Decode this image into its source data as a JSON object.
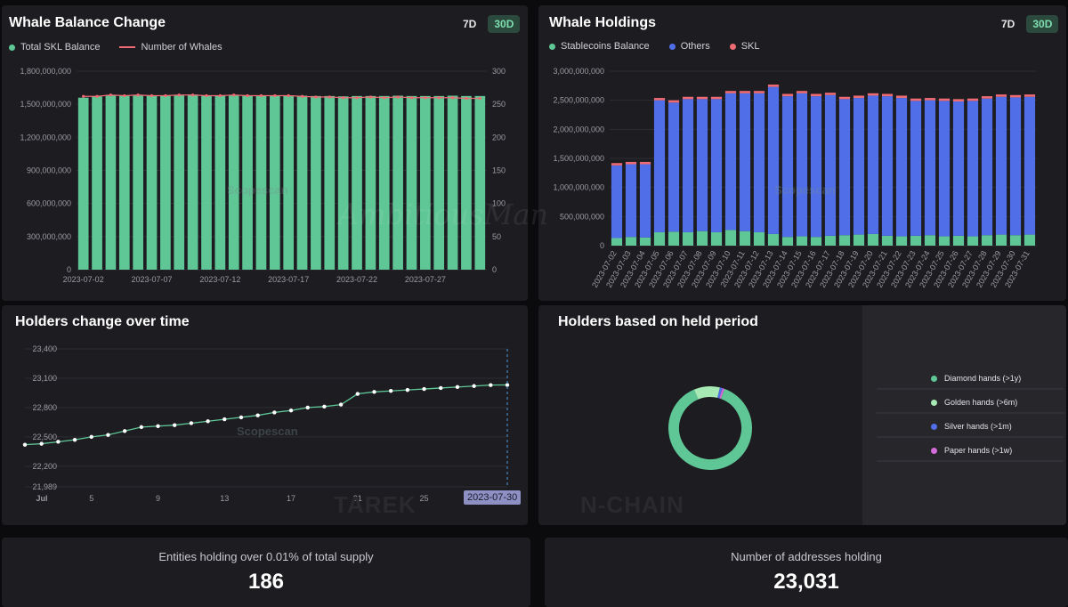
{
  "panels": {
    "whale_balance": {
      "title": "Whale Balance Change",
      "toggle_7d": "7D",
      "toggle_30d": "30D",
      "legend": [
        "Total SKL Balance",
        "Number of Whales"
      ]
    },
    "whale_holdings": {
      "title": "Whale Holdings",
      "toggle_7d": "7D",
      "toggle_30d": "30D",
      "legend": [
        "Stablecoins Balance",
        "Others",
        "SKL"
      ]
    },
    "holders_change": {
      "title": "Holders change over time",
      "tooltip_date": "2023-07-30"
    },
    "held_period": {
      "title": "Holders based on held period",
      "legend": [
        "Diamond hands (>1y)",
        "Golden hands (>6m)",
        "Silver hands (>1m)",
        "Paper hands (>1w)"
      ]
    },
    "entities": {
      "label": "Entities holding over 0.01% of total supply",
      "value": "186"
    },
    "addresses": {
      "label": "Number of addresses holding",
      "value": "23,031"
    }
  },
  "watermarks": {
    "brand": "Scopescan",
    "left": "TAREK",
    "right": "N-CHAIN",
    "script": "AmbitiousMan"
  },
  "colors": {
    "green": "#5fc796",
    "blue": "#4f6ee8",
    "red": "#ef6b73",
    "light_green": "#a7e9b4",
    "purple": "#d46bd8"
  },
  "chart_data": [
    {
      "id": "whale_balance",
      "type": "bar",
      "title": "Whale Balance Change",
      "categories": [
        "2023-07-02",
        "2023-07-03",
        "2023-07-04",
        "2023-07-05",
        "2023-07-06",
        "2023-07-07",
        "2023-07-08",
        "2023-07-09",
        "2023-07-10",
        "2023-07-11",
        "2023-07-12",
        "2023-07-13",
        "2023-07-14",
        "2023-07-15",
        "2023-07-16",
        "2023-07-17",
        "2023-07-18",
        "2023-07-19",
        "2023-07-20",
        "2023-07-21",
        "2023-07-22",
        "2023-07-23",
        "2023-07-24",
        "2023-07-25",
        "2023-07-26",
        "2023-07-27",
        "2023-07-28",
        "2023-07-29",
        "2023-07-30",
        "2023-07-31"
      ],
      "x_tick_labels": [
        "2023-07-02",
        "2023-07-07",
        "2023-07-12",
        "2023-07-17",
        "2023-07-22",
        "2023-07-27"
      ],
      "y_ticks": [
        "0",
        "300,000,000",
        "600,000,000",
        "900,000,000",
        "1,200,000,000",
        "1,500,000,000",
        "1,800,000,000"
      ],
      "y2_ticks": [
        "0",
        "50",
        "100",
        "150",
        "200",
        "250",
        "300"
      ],
      "ylim": [
        0,
        1800000000
      ],
      "y2lim": [
        0,
        300
      ],
      "series": [
        {
          "name": "Total SKL Balance",
          "kind": "bar",
          "axis": "left",
          "values": [
            1560000000,
            1570000000,
            1585000000,
            1580000000,
            1585000000,
            1580000000,
            1582000000,
            1585000000,
            1588000000,
            1580000000,
            1582000000,
            1585000000,
            1582000000,
            1580000000,
            1580000000,
            1582000000,
            1578000000,
            1575000000,
            1575000000,
            1572000000,
            1575000000,
            1575000000,
            1575000000,
            1578000000,
            1575000000,
            1575000000,
            1575000000,
            1578000000,
            1575000000,
            1575000000
          ]
        },
        {
          "name": "Number of Whales",
          "kind": "line",
          "axis": "right",
          "values": [
            262,
            262,
            264,
            263,
            264,
            263,
            263,
            264,
            264,
            263,
            263,
            264,
            263,
            263,
            263,
            263,
            262,
            261,
            261,
            260,
            260,
            261,
            260,
            261,
            260,
            260,
            260,
            260,
            259,
            259
          ]
        }
      ]
    },
    {
      "id": "whale_holdings",
      "type": "bar",
      "title": "Whale Holdings",
      "stacked": true,
      "categories": [
        "2023-07-02",
        "2023-07-03",
        "2023-07-04",
        "2023-07-05",
        "2023-07-06",
        "2023-07-07",
        "2023-07-08",
        "2023-07-09",
        "2023-07-10",
        "2023-07-11",
        "2023-07-12",
        "2023-07-13",
        "2023-07-14",
        "2023-07-15",
        "2023-07-16",
        "2023-07-17",
        "2023-07-18",
        "2023-07-19",
        "2023-07-20",
        "2023-07-21",
        "2023-07-22",
        "2023-07-23",
        "2023-07-24",
        "2023-07-25",
        "2023-07-26",
        "2023-07-27",
        "2023-07-28",
        "2023-07-29",
        "2023-07-30",
        "2023-07-31"
      ],
      "y_ticks": [
        "0",
        "500,000,000",
        "1,000,000,000",
        "1,500,000,000",
        "2,000,000,000",
        "2,500,000,000",
        "3,000,000,000"
      ],
      "ylim": [
        0,
        3000000000
      ],
      "series": [
        {
          "name": "Stablecoins Balance",
          "values": [
            130000000,
            150000000,
            140000000,
            230000000,
            240000000,
            230000000,
            250000000,
            230000000,
            270000000,
            250000000,
            230000000,
            200000000,
            150000000,
            160000000,
            150000000,
            170000000,
            180000000,
            190000000,
            200000000,
            170000000,
            160000000,
            170000000,
            180000000,
            160000000,
            170000000,
            160000000,
            180000000,
            190000000,
            180000000,
            190000000
          ]
        },
        {
          "name": "Others",
          "values": [
            1250000000,
            1250000000,
            1260000000,
            2270000000,
            2220000000,
            2290000000,
            2270000000,
            2290000000,
            2350000000,
            2370000000,
            2390000000,
            2530000000,
            2420000000,
            2460000000,
            2420000000,
            2420000000,
            2340000000,
            2350000000,
            2380000000,
            2400000000,
            2380000000,
            2320000000,
            2320000000,
            2330000000,
            2310000000,
            2330000000,
            2350000000,
            2370000000,
            2370000000,
            2370000000
          ]
        },
        {
          "name": "SKL",
          "values": [
            40000000,
            40000000,
            40000000,
            40000000,
            40000000,
            40000000,
            40000000,
            40000000,
            40000000,
            40000000,
            40000000,
            40000000,
            40000000,
            40000000,
            40000000,
            40000000,
            40000000,
            40000000,
            40000000,
            40000000,
            40000000,
            40000000,
            40000000,
            40000000,
            40000000,
            40000000,
            40000000,
            40000000,
            40000000,
            40000000
          ]
        }
      ]
    },
    {
      "id": "holders_change",
      "type": "line",
      "title": "Holders change over time",
      "x_tick_labels": [
        "Jul",
        "5",
        "9",
        "13",
        "17",
        "21",
        "25"
      ],
      "y_ticks": [
        "21,989",
        "22,200",
        "22,500",
        "22,800",
        "23,100",
        "23,400"
      ],
      "ylim": [
        21989,
        23400
      ],
      "x_days": [
        1,
        2,
        3,
        4,
        5,
        6,
        7,
        8,
        9,
        10,
        11,
        12,
        13,
        14,
        15,
        16,
        17,
        18,
        19,
        20,
        21,
        22,
        23,
        24,
        25,
        26,
        27,
        28,
        29,
        30
      ],
      "values": [
        22420,
        22430,
        22450,
        22470,
        22500,
        22520,
        22560,
        22600,
        22610,
        22620,
        22640,
        22660,
        22680,
        22700,
        22720,
        22750,
        22770,
        22800,
        22810,
        22830,
        22940,
        22960,
        22970,
        22980,
        22990,
        23000,
        23010,
        23020,
        23030,
        23031
      ]
    },
    {
      "id": "held_period",
      "type": "pie",
      "title": "Holders based on held period",
      "categories": [
        "Diamond hands (>1y)",
        "Golden hands (>6m)",
        "Silver hands (>1m)",
        "Paper hands (>1w)"
      ],
      "values": [
        88,
        10,
        1,
        1
      ]
    }
  ]
}
